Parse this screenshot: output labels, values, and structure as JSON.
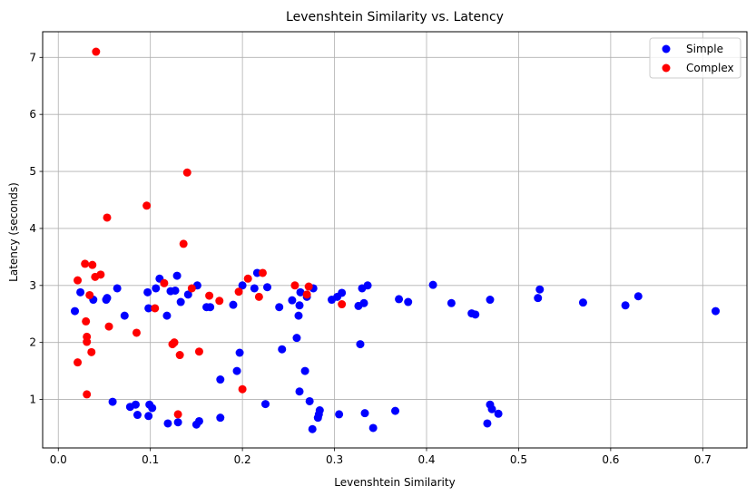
{
  "chart_data": {
    "type": "scatter",
    "title": "Levenshtein Similarity vs. Latency",
    "xlabel": "Levenshtein Similarity",
    "ylabel": "Latency (seconds)",
    "xlim": [
      -0.017,
      0.748
    ],
    "ylim": [
      0.15,
      7.45
    ],
    "xticks": [
      0.0,
      0.1,
      0.2,
      0.3,
      0.4,
      0.5,
      0.6,
      0.7
    ],
    "xtick_labels": [
      "0.0",
      "0.1",
      "0.2",
      "0.3",
      "0.4",
      "0.5",
      "0.6",
      "0.7"
    ],
    "yticks": [
      1,
      2,
      3,
      4,
      5,
      6,
      7
    ],
    "ytick_labels": [
      "1",
      "2",
      "3",
      "4",
      "5",
      "6",
      "7"
    ],
    "grid": true,
    "legend_position": "top-right",
    "series": [
      {
        "name": "Simple",
        "color": "#0000ff",
        "points": [
          [
            0.018,
            2.55
          ],
          [
            0.024,
            2.88
          ],
          [
            0.038,
            2.75
          ],
          [
            0.052,
            2.75
          ],
          [
            0.053,
            2.78
          ],
          [
            0.059,
            0.96
          ],
          [
            0.064,
            2.95
          ],
          [
            0.072,
            2.47
          ],
          [
            0.078,
            0.87
          ],
          [
            0.084,
            0.91
          ],
          [
            0.086,
            0.73
          ],
          [
            0.097,
            2.88
          ],
          [
            0.098,
            2.6
          ],
          [
            0.098,
            0.71
          ],
          [
            0.099,
            0.91
          ],
          [
            0.102,
            0.85
          ],
          [
            0.106,
            2.95
          ],
          [
            0.11,
            3.12
          ],
          [
            0.118,
            2.47
          ],
          [
            0.119,
            0.58
          ],
          [
            0.122,
            2.9
          ],
          [
            0.127,
            2.91
          ],
          [
            0.129,
            3.17
          ],
          [
            0.13,
            0.6
          ],
          [
            0.133,
            2.71
          ],
          [
            0.141,
            2.84
          ],
          [
            0.15,
            0.56
          ],
          [
            0.151,
            3.0
          ],
          [
            0.153,
            0.62
          ],
          [
            0.161,
            2.62
          ],
          [
            0.165,
            2.62
          ],
          [
            0.176,
            1.35
          ],
          [
            0.176,
            0.68
          ],
          [
            0.19,
            2.66
          ],
          [
            0.194,
            1.5
          ],
          [
            0.197,
            1.82
          ],
          [
            0.2,
            3.0
          ],
          [
            0.213,
            2.95
          ],
          [
            0.216,
            3.22
          ],
          [
            0.225,
            0.92
          ],
          [
            0.227,
            2.97
          ],
          [
            0.24,
            2.62
          ],
          [
            0.243,
            1.88
          ],
          [
            0.254,
            2.74
          ],
          [
            0.259,
            2.08
          ],
          [
            0.261,
            2.47
          ],
          [
            0.262,
            1.14
          ],
          [
            0.262,
            2.65
          ],
          [
            0.263,
            2.88
          ],
          [
            0.268,
            1.5
          ],
          [
            0.27,
            2.8
          ],
          [
            0.273,
            0.97
          ],
          [
            0.276,
            0.48
          ],
          [
            0.277,
            2.95
          ],
          [
            0.282,
            0.68
          ],
          [
            0.283,
            0.74
          ],
          [
            0.284,
            0.81
          ],
          [
            0.297,
            2.75
          ],
          [
            0.303,
            2.8
          ],
          [
            0.305,
            0.74
          ],
          [
            0.308,
            2.87
          ],
          [
            0.326,
            2.64
          ],
          [
            0.328,
            1.97
          ],
          [
            0.33,
            2.95
          ],
          [
            0.332,
            2.69
          ],
          [
            0.333,
            0.76
          ],
          [
            0.336,
            3.0
          ],
          [
            0.342,
            0.5
          ],
          [
            0.366,
            0.8
          ],
          [
            0.37,
            2.76
          ],
          [
            0.38,
            2.71
          ],
          [
            0.407,
            3.01
          ],
          [
            0.427,
            2.69
          ],
          [
            0.449,
            2.51
          ],
          [
            0.453,
            2.49
          ],
          [
            0.466,
            0.58
          ],
          [
            0.469,
            0.91
          ],
          [
            0.469,
            2.75
          ],
          [
            0.471,
            0.83
          ],
          [
            0.478,
            0.75
          ],
          [
            0.521,
            2.78
          ],
          [
            0.523,
            2.93
          ],
          [
            0.57,
            2.7
          ],
          [
            0.616,
            2.65
          ],
          [
            0.63,
            2.81
          ],
          [
            0.714,
            2.55
          ]
        ]
      },
      {
        "name": "Complex",
        "color": "#ff0000",
        "points": [
          [
            0.021,
            3.09
          ],
          [
            0.021,
            1.65
          ],
          [
            0.029,
            3.38
          ],
          [
            0.03,
            2.37
          ],
          [
            0.031,
            2.1
          ],
          [
            0.031,
            2.01
          ],
          [
            0.031,
            1.09
          ],
          [
            0.034,
            2.83
          ],
          [
            0.036,
            1.83
          ],
          [
            0.037,
            3.36
          ],
          [
            0.04,
            3.15
          ],
          [
            0.041,
            7.1
          ],
          [
            0.046,
            3.19
          ],
          [
            0.053,
            4.19
          ],
          [
            0.055,
            2.28
          ],
          [
            0.085,
            2.17
          ],
          [
            0.096,
            4.4
          ],
          [
            0.105,
            2.6
          ],
          [
            0.115,
            3.04
          ],
          [
            0.124,
            1.97
          ],
          [
            0.126,
            2.0
          ],
          [
            0.13,
            0.74
          ],
          [
            0.132,
            1.78
          ],
          [
            0.136,
            3.73
          ],
          [
            0.14,
            4.98
          ],
          [
            0.145,
            2.95
          ],
          [
            0.153,
            1.84
          ],
          [
            0.164,
            2.82
          ],
          [
            0.175,
            2.73
          ],
          [
            0.196,
            2.89
          ],
          [
            0.2,
            1.18
          ],
          [
            0.206,
            3.12
          ],
          [
            0.218,
            2.8
          ],
          [
            0.222,
            3.22
          ],
          [
            0.257,
            3.0
          ],
          [
            0.27,
            2.84
          ],
          [
            0.272,
            2.98
          ],
          [
            0.308,
            2.67
          ]
        ]
      }
    ]
  }
}
